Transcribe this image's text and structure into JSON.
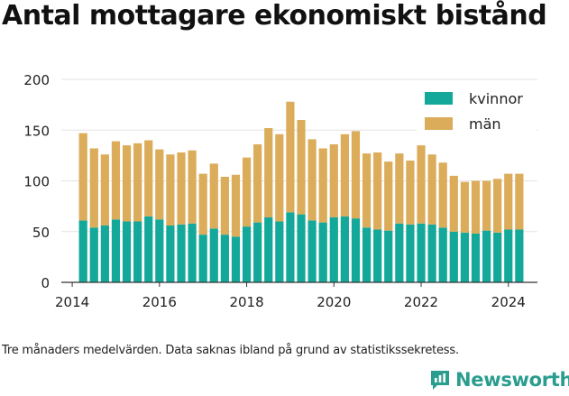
{
  "title": "Antal mottagare ekonomiskt bistånd",
  "footnote": "Tre månaders medelvärden. Data saknas ibland på grund av statistikssekretess.",
  "brand": {
    "name": "Newsworthy",
    "icon": "newsworthy-logo-icon",
    "color": "#2a9d8f"
  },
  "colors": {
    "kvinnor": "#14a89a",
    "man": "#dbac5a",
    "grid": "#e3e3e3",
    "axis": "#333333"
  },
  "chart_data": {
    "type": "bar",
    "stacked": true,
    "x_ticks": [
      "2014",
      "2016",
      "2018",
      "2020",
      "2022",
      "2024"
    ],
    "y_ticks": [
      "0",
      "50",
      "100",
      "150",
      "200"
    ],
    "ylim": [
      0,
      200
    ],
    "xlim": [
      "2013-10",
      "2024-09"
    ],
    "grid": true,
    "legend_position": "top-right",
    "dates": [
      "2014-04",
      "2014-07",
      "2014-10",
      "2015-01",
      "2015-04",
      "2015-07",
      "2015-10",
      "2016-01",
      "2016-04",
      "2016-07",
      "2016-10",
      "2017-01",
      "2017-04",
      "2017-07",
      "2017-10",
      "2018-01",
      "2018-04",
      "2018-07",
      "2018-10",
      "2019-01",
      "2019-04",
      "2019-07",
      "2019-10",
      "2020-01",
      "2020-04",
      "2020-07",
      "2020-10",
      "2021-01",
      "2021-04",
      "2021-07",
      "2021-10",
      "2022-01",
      "2022-04",
      "2022-07",
      "2022-10",
      "2023-01",
      "2023-04",
      "2023-07",
      "2023-10",
      "2024-01",
      "2024-04"
    ],
    "series": [
      {
        "name": "kvinnor",
        "color": "#14a89a",
        "values": [
          61,
          54,
          56,
          62,
          60,
          60,
          65,
          62,
          56,
          57,
          58,
          47,
          53,
          47,
          45,
          55,
          59,
          64,
          60,
          69,
          67,
          61,
          59,
          64,
          65,
          63,
          54,
          52,
          51,
          58,
          57,
          58,
          57,
          54,
          50,
          49,
          48,
          51,
          49,
          52,
          52
        ]
      },
      {
        "name": "män",
        "color": "#dbac5a",
        "values": [
          86,
          78,
          70,
          77,
          75,
          77,
          75,
          69,
          70,
          71,
          72,
          60,
          64,
          57,
          61,
          68,
          77,
          88,
          86,
          109,
          93,
          80,
          73,
          72,
          81,
          86,
          73,
          76,
          68,
          69,
          63,
          77,
          69,
          64,
          55,
          50,
          52,
          49,
          53,
          55,
          55
        ]
      }
    ]
  }
}
